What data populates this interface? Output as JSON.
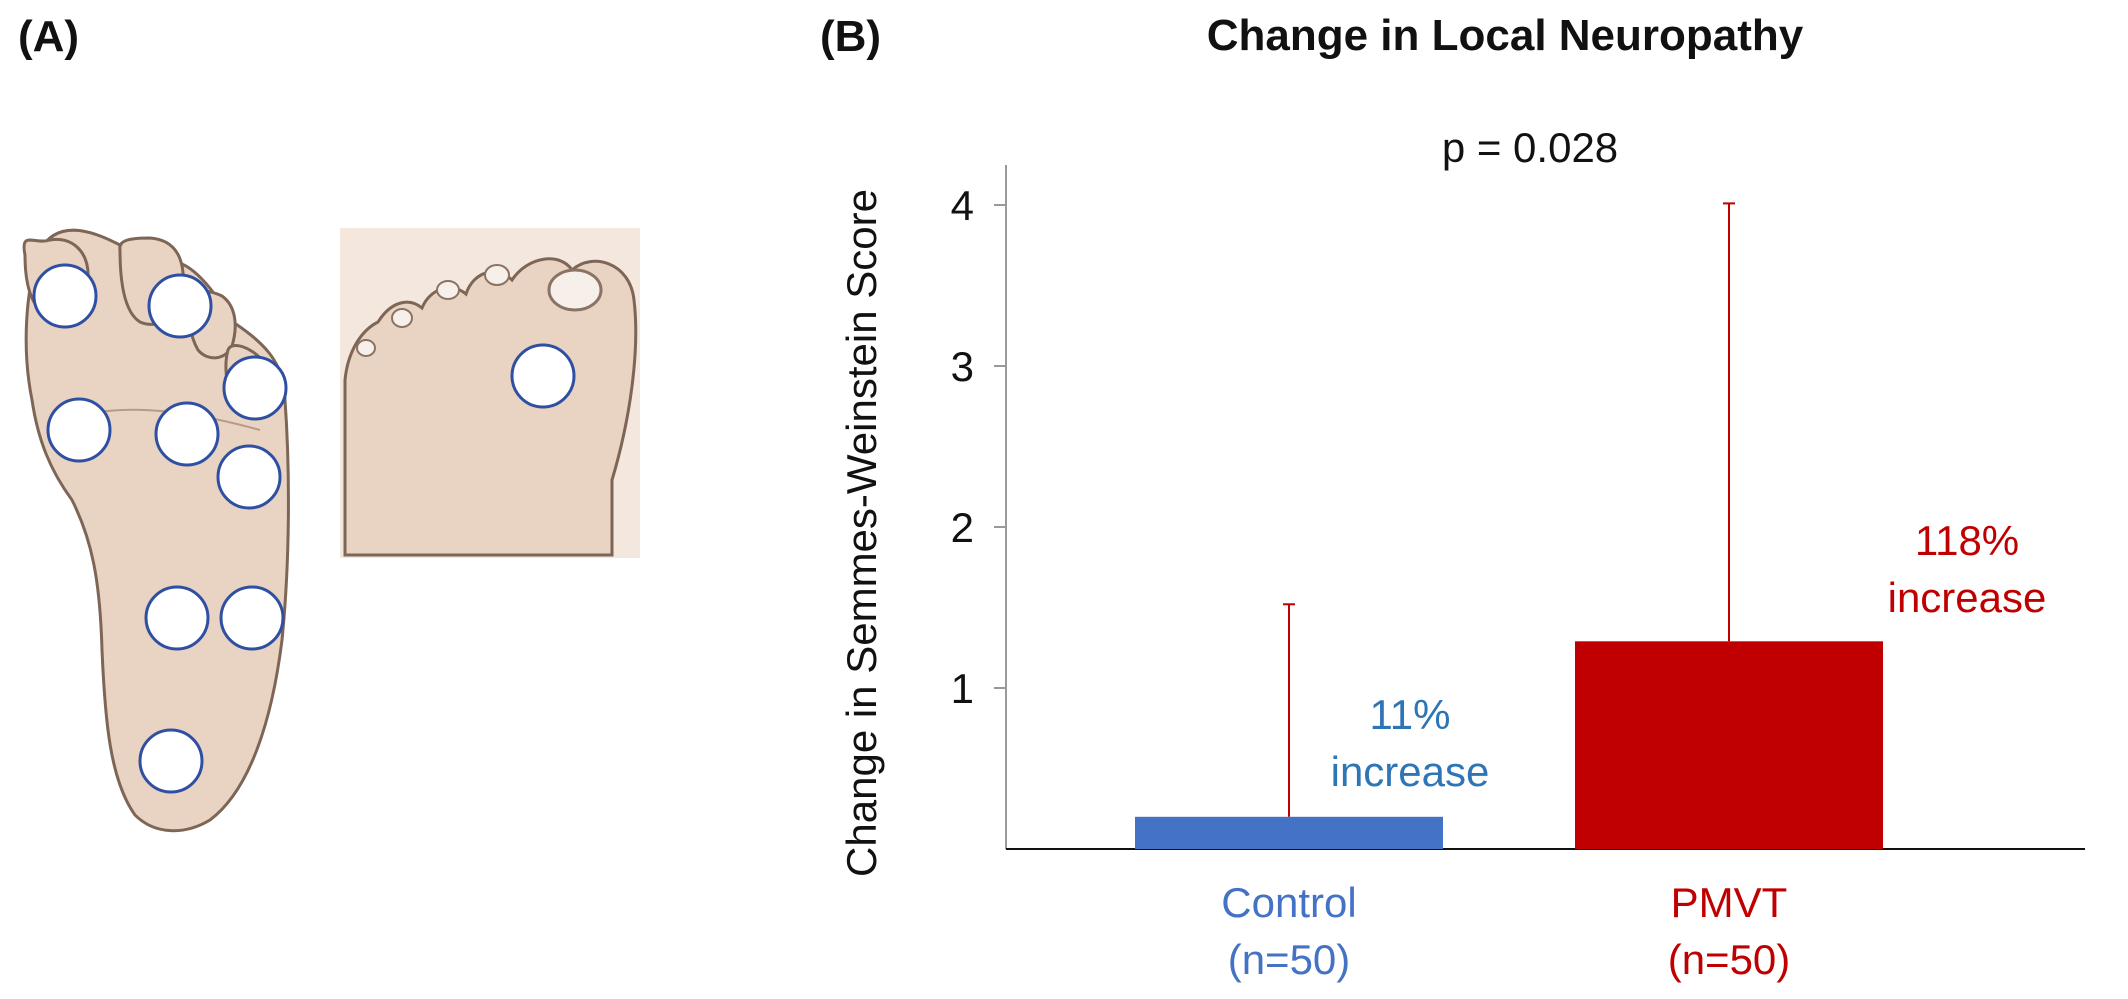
{
  "panels": {
    "a_label": "(A)",
    "b_label": "(B)"
  },
  "foot_figure": {
    "skin_color": "#e9d3c3",
    "outline_color": "#7d6656",
    "marker_stroke": "#2f4fa3",
    "marker_fill": "#ffffff",
    "test_site_count": 10
  },
  "chart_data": {
    "type": "bar",
    "title": "Change in Local Neuropathy",
    "ylabel": "Change in Semmes-Weinstein Score",
    "xlabel": "",
    "ylim": [
      0,
      4.2
    ],
    "yticks": [
      1,
      2,
      3,
      4
    ],
    "categories": [
      {
        "name": "Control",
        "n_label": "(n=50)",
        "color": "#4472c4"
      },
      {
        "name": "PMVT",
        "n_label": "(n=50)",
        "color": "#c00000"
      }
    ],
    "values": [
      0.2,
      1.29
    ],
    "error_upper": [
      1.52,
      4.01
    ],
    "error_bar_color": "#c00000",
    "annotations": [
      {
        "line1": "11%",
        "line2": "increase",
        "color": "#2e75b6"
      },
      {
        "line1": "118%",
        "line2": "increase",
        "color": "#c00000"
      }
    ],
    "p_value_text": "p = 0.028",
    "grid": false,
    "legend": "none"
  }
}
